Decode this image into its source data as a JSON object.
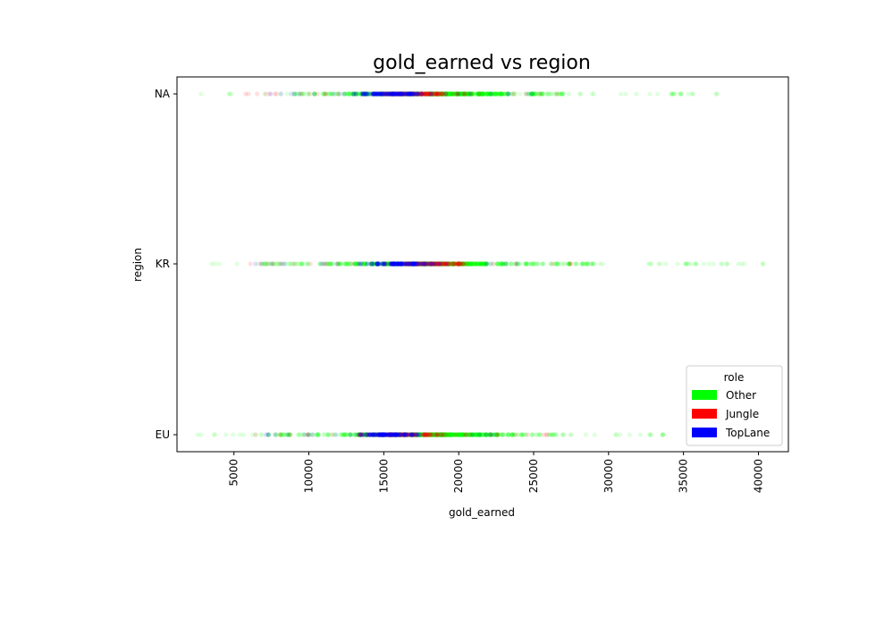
{
  "chart_data": {
    "type": "scatter",
    "title": "gold_earned vs region",
    "xlabel": "gold_earned",
    "ylabel": "region",
    "xlim": [
      1200,
      42000
    ],
    "x_ticks": [
      5000,
      10000,
      15000,
      20000,
      25000,
      30000,
      35000,
      40000
    ],
    "y_categories": [
      "EU",
      "KR",
      "NA"
    ],
    "grid": false,
    "legend": {
      "title": "role",
      "position": "bottom-right",
      "entries": [
        {
          "name": "Other",
          "color": "#00ff00"
        },
        {
          "name": "Jungle",
          "color": "#ff0000"
        },
        {
          "name": "TopLane",
          "color": "#0000ff"
        }
      ]
    },
    "series": [
      {
        "name": "Other",
        "color": "#00ff00",
        "points": [
          {
            "region": "NA",
            "x_range": [
              2800,
              37500
            ],
            "core": [
              9000,
              27000
            ],
            "dense": [
              13000,
              23500
            ],
            "outliers": [
              34200,
              35600,
              37200
            ]
          },
          {
            "region": "KR",
            "x_range": [
              3100,
              40400
            ],
            "core": [
              7000,
              29000
            ],
            "dense": [
              12000,
              23500
            ],
            "outliers": [
              35200,
              35800,
              37900,
              40300
            ]
          },
          {
            "region": "EU",
            "x_range": [
              2500,
              33900
            ],
            "core": [
              7000,
              27500
            ],
            "dense": [
              12000,
              24000
            ],
            "outliers": [
              30500,
              32800,
              33600
            ]
          }
        ]
      },
      {
        "name": "Jungle",
        "color": "#ff0000",
        "points": [
          {
            "region": "NA",
            "x_range": [
              5000,
              28000
            ],
            "dense": [
              14000,
              20000
            ]
          },
          {
            "region": "KR",
            "x_range": [
              5500,
              27500
            ],
            "dense": [
              15000,
              21000
            ]
          },
          {
            "region": "EU",
            "x_range": [
              5500,
              26000
            ],
            "dense": [
              13000,
              19500
            ]
          }
        ]
      },
      {
        "name": "TopLane",
        "color": "#0000ff",
        "points": [
          {
            "region": "NA",
            "x_range": [
              6000,
              25000
            ],
            "dense": [
              13000,
              18000
            ]
          },
          {
            "region": "KR",
            "x_range": [
              6000,
              24000
            ],
            "dense": [
              13500,
              18500
            ]
          },
          {
            "region": "EU",
            "x_range": [
              7000,
              24000
            ],
            "dense": [
              13000,
              17500
            ]
          }
        ]
      }
    ]
  }
}
